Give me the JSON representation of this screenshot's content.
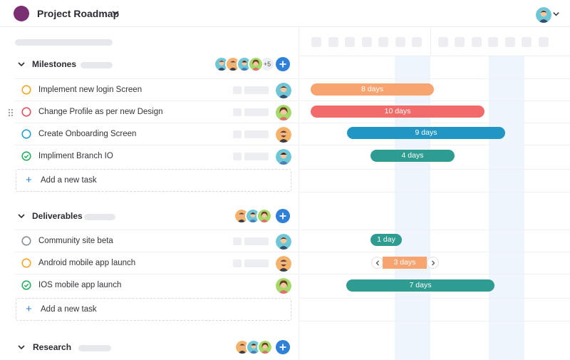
{
  "header": {
    "project_title": "Project Roadmap"
  },
  "colors": {
    "accent": "#2f80d8",
    "logo": "#7b2f73",
    "status_orange": "#f5a623",
    "status_red": "#e8505b",
    "status_blue": "#2a9fd6",
    "status_green": "#27ae60",
    "status_gray": "#8a8f98",
    "bar_orange": "#f8a470",
    "bar_red": "#f26b6b",
    "bar_blue": "#2196c4",
    "bar_teal": "#2f9c92",
    "weekend": "#eef5fc"
  },
  "groups": [
    {
      "title": "Milestones",
      "more_members": "+5",
      "tasks": [
        {
          "name": "Implement new login Screen",
          "status": "in-progress",
          "bar": {
            "label": "8 days"
          }
        },
        {
          "name": "Change Profile as per new Design",
          "status": "blocked",
          "bar": {
            "label": "10 days"
          }
        },
        {
          "name": "Create Onboarding Screen",
          "status": "review",
          "bar": {
            "label": "9 days"
          }
        },
        {
          "name": "Impliment Branch IO",
          "status": "done",
          "bar": {
            "label": "4 days"
          }
        }
      ],
      "add_task_label": "Add a new task"
    },
    {
      "title": "Deliverables",
      "tasks": [
        {
          "name": "Community site beta",
          "status": "todo",
          "bar": {
            "label": "1 day"
          }
        },
        {
          "name": "Android mobile app launch",
          "status": "in-progress",
          "bar": {
            "label": "3 days"
          }
        },
        {
          "name": "IOS mobile app launch",
          "status": "done",
          "bar": {
            "label": "7 days"
          }
        }
      ],
      "add_task_label": "Add a new task"
    },
    {
      "title": "Research"
    }
  ],
  "icons": {
    "logo": "logo-icon",
    "caret": "chevron-down-icon",
    "add": "plus-icon",
    "drag": "drag-handle-icon",
    "prev": "chevron-left-icon",
    "next": "chevron-right-icon"
  }
}
